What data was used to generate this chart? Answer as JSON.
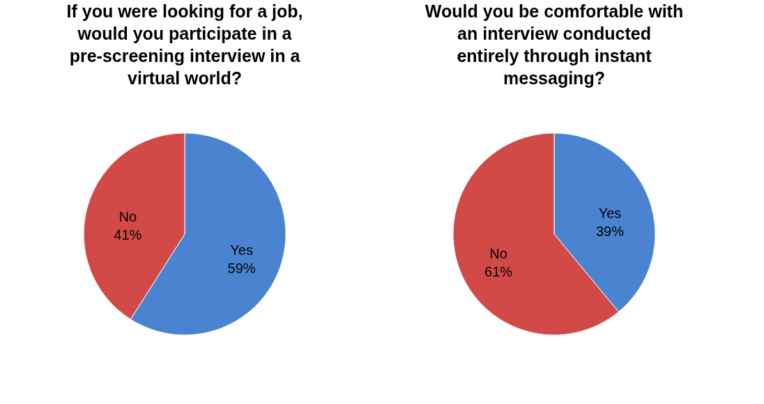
{
  "chart_data": [
    {
      "type": "pie",
      "title": "If you were looking for a job, would you participate in a pre-screening interview in a virtual world?",
      "categories": [
        "Yes",
        "No"
      ],
      "values": [
        59,
        41
      ],
      "value_labels": [
        "59%",
        "41%"
      ],
      "colors": [
        "#4a84d0",
        "#d24a48"
      ],
      "legend": false
    },
    {
      "type": "pie",
      "title": "Would you be comfortable with an interview conducted entirely through instant messaging?",
      "categories": [
        "Yes",
        "No"
      ],
      "values": [
        39,
        61
      ],
      "value_labels": [
        "39%",
        "61%"
      ],
      "colors": [
        "#4a84d0",
        "#d24a48"
      ],
      "legend": false
    }
  ]
}
